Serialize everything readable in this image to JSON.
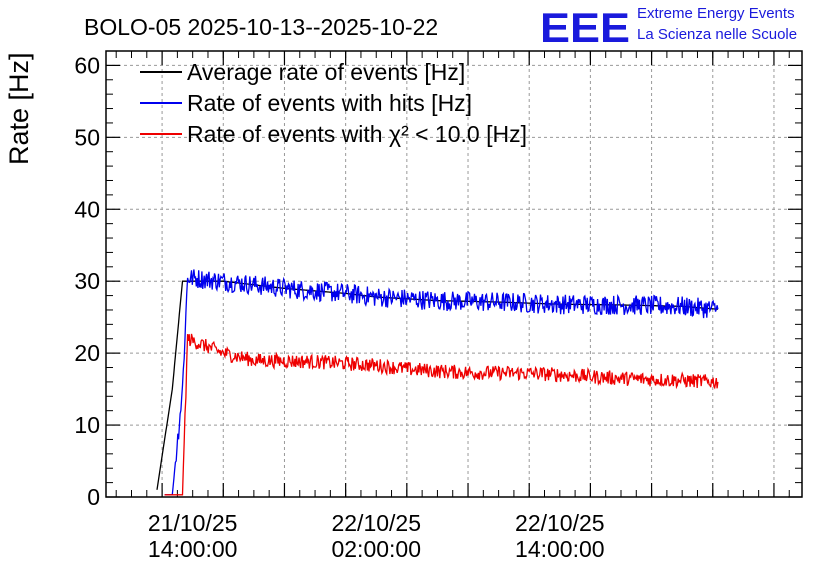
{
  "header": {
    "title": "BOLO-05 2025-10-13--2025-10-22",
    "logo_mark": "EEE",
    "logo_line1": "Extreme Energy Events",
    "logo_line2": "La Scienza nelle Scuole"
  },
  "chart_data": {
    "type": "line",
    "title": "BOLO-05 2025-10-13--2025-10-22",
    "xlabel": "",
    "ylabel": "Rate [Hz]",
    "xlim": [
      "2025-10-21 08:20",
      "2025-10-23 05:50"
    ],
    "ylim": [
      0,
      62
    ],
    "yticks": [
      0,
      10,
      20,
      30,
      40,
      50,
      60
    ],
    "xtick_labels": [
      {
        "x": "2025-10-21 14:00",
        "date": "21/10/25",
        "time": "14:00:00"
      },
      {
        "x": "2025-10-22 02:00",
        "date": "22/10/25",
        "time": "02:00:00"
      },
      {
        "x": "2025-10-22 14:00",
        "date": "22/10/25",
        "time": "14:00:00"
      }
    ],
    "grid": true,
    "legend_position": "top-left",
    "series": [
      {
        "name": "Average rate of events [Hz]",
        "color": "#000000",
        "x": [
          "2025-10-21 11:40",
          "2025-10-21 12:40",
          "2025-10-21 13:20",
          "2025-10-21 16:00",
          "2025-10-21 20:00",
          "2025-10-22 00:00",
          "2025-10-22 02:00",
          "2025-10-22 06:00",
          "2025-10-22 10:00",
          "2025-10-22 14:00",
          "2025-10-22 18:00",
          "2025-10-22 22:00",
          "2025-10-23 00:20"
        ],
        "y": [
          1,
          15,
          30,
          30,
          29,
          28.3,
          27.8,
          27.3,
          27.1,
          26.8,
          26.7,
          26.5,
          26.1
        ]
      },
      {
        "name": "Rate of events with hits [Hz]",
        "color": "#0000ee",
        "x": [
          "2025-10-21 12:10",
          "2025-10-21 12:40",
          "2025-10-21 13:20",
          "2025-10-21 13:40",
          "2025-10-21 16:00",
          "2025-10-21 20:00",
          "2025-10-22 00:00",
          "2025-10-22 02:00",
          "2025-10-22 06:00",
          "2025-10-22 10:00",
          "2025-10-22 14:00",
          "2025-10-22 18:00",
          "2025-10-22 22:00",
          "2025-10-23 00:20"
        ],
        "y": [
          0.3,
          0.3,
          15,
          30.5,
          30,
          29,
          28.3,
          27.8,
          27.3,
          27.1,
          26.8,
          26.7,
          26.5,
          26.1
        ]
      },
      {
        "name": "Rate of events with χ² < 10.0 [Hz]",
        "color": "#ee0000",
        "x": [
          "2025-10-21 12:10",
          "2025-10-21 13:20",
          "2025-10-21 13:40",
          "2025-10-21 16:00",
          "2025-10-21 18:00",
          "2025-10-21 22:00",
          "2025-10-22 02:00",
          "2025-10-22 04:00",
          "2025-10-22 06:00",
          "2025-10-22 08:00",
          "2025-10-22 12:00",
          "2025-10-22 14:00",
          "2025-10-22 18:00",
          "2025-10-22 22:00",
          "2025-10-23 00:20"
        ],
        "y": [
          0.3,
          0.3,
          22,
          20,
          19,
          18.8,
          18.3,
          17.8,
          17.5,
          17.3,
          17.2,
          17,
          16.5,
          16.2,
          16
        ]
      }
    ]
  }
}
